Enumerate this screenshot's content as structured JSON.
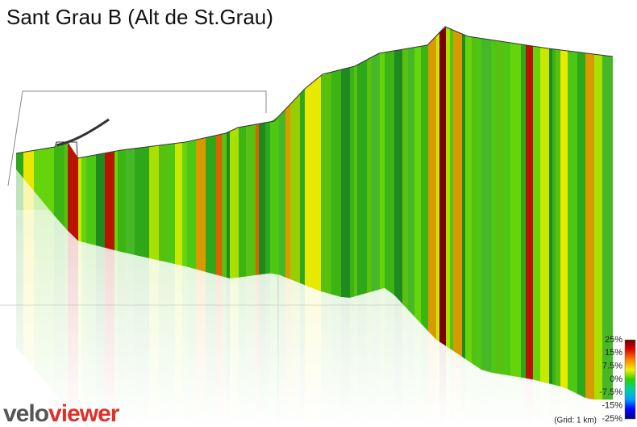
{
  "title": "Sant Grau B (Alt de St.Grau)",
  "legend": {
    "labels": [
      "25%",
      "15%",
      "7.5%",
      "0%",
      "-7.5%",
      "-15%",
      "-25%"
    ],
    "grid_note": "(Grid: 1 km)"
  },
  "logo": {
    "first": "velo",
    "second": "viewer"
  }
}
